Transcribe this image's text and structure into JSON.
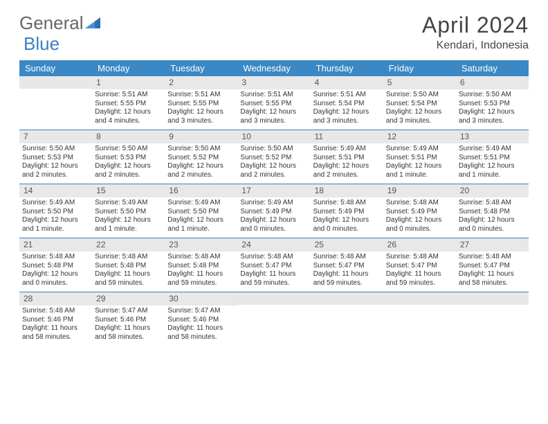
{
  "logo": {
    "text1": "General",
    "text2": "Blue"
  },
  "title": "April 2024",
  "location": "Kendari, Indonesia",
  "colors": {
    "header_bg": "#3b88c4",
    "header_text": "#ffffff",
    "daynum_bg": "#e8e8e8",
    "border": "#3b7fc4",
    "logo_blue": "#3b7fc4"
  },
  "dow": [
    "Sunday",
    "Monday",
    "Tuesday",
    "Wednesday",
    "Thursday",
    "Friday",
    "Saturday"
  ],
  "weeks": [
    [
      {
        "day": "",
        "sunrise": "",
        "sunset": "",
        "daylight": ""
      },
      {
        "day": "1",
        "sunrise": "Sunrise: 5:51 AM",
        "sunset": "Sunset: 5:55 PM",
        "daylight": "Daylight: 12 hours and 4 minutes."
      },
      {
        "day": "2",
        "sunrise": "Sunrise: 5:51 AM",
        "sunset": "Sunset: 5:55 PM",
        "daylight": "Daylight: 12 hours and 3 minutes."
      },
      {
        "day": "3",
        "sunrise": "Sunrise: 5:51 AM",
        "sunset": "Sunset: 5:55 PM",
        "daylight": "Daylight: 12 hours and 3 minutes."
      },
      {
        "day": "4",
        "sunrise": "Sunrise: 5:51 AM",
        "sunset": "Sunset: 5:54 PM",
        "daylight": "Daylight: 12 hours and 3 minutes."
      },
      {
        "day": "5",
        "sunrise": "Sunrise: 5:50 AM",
        "sunset": "Sunset: 5:54 PM",
        "daylight": "Daylight: 12 hours and 3 minutes."
      },
      {
        "day": "6",
        "sunrise": "Sunrise: 5:50 AM",
        "sunset": "Sunset: 5:53 PM",
        "daylight": "Daylight: 12 hours and 3 minutes."
      }
    ],
    [
      {
        "day": "7",
        "sunrise": "Sunrise: 5:50 AM",
        "sunset": "Sunset: 5:53 PM",
        "daylight": "Daylight: 12 hours and 2 minutes."
      },
      {
        "day": "8",
        "sunrise": "Sunrise: 5:50 AM",
        "sunset": "Sunset: 5:53 PM",
        "daylight": "Daylight: 12 hours and 2 minutes."
      },
      {
        "day": "9",
        "sunrise": "Sunrise: 5:50 AM",
        "sunset": "Sunset: 5:52 PM",
        "daylight": "Daylight: 12 hours and 2 minutes."
      },
      {
        "day": "10",
        "sunrise": "Sunrise: 5:50 AM",
        "sunset": "Sunset: 5:52 PM",
        "daylight": "Daylight: 12 hours and 2 minutes."
      },
      {
        "day": "11",
        "sunrise": "Sunrise: 5:49 AM",
        "sunset": "Sunset: 5:51 PM",
        "daylight": "Daylight: 12 hours and 2 minutes."
      },
      {
        "day": "12",
        "sunrise": "Sunrise: 5:49 AM",
        "sunset": "Sunset: 5:51 PM",
        "daylight": "Daylight: 12 hours and 1 minute."
      },
      {
        "day": "13",
        "sunrise": "Sunrise: 5:49 AM",
        "sunset": "Sunset: 5:51 PM",
        "daylight": "Daylight: 12 hours and 1 minute."
      }
    ],
    [
      {
        "day": "14",
        "sunrise": "Sunrise: 5:49 AM",
        "sunset": "Sunset: 5:50 PM",
        "daylight": "Daylight: 12 hours and 1 minute."
      },
      {
        "day": "15",
        "sunrise": "Sunrise: 5:49 AM",
        "sunset": "Sunset: 5:50 PM",
        "daylight": "Daylight: 12 hours and 1 minute."
      },
      {
        "day": "16",
        "sunrise": "Sunrise: 5:49 AM",
        "sunset": "Sunset: 5:50 PM",
        "daylight": "Daylight: 12 hours and 1 minute."
      },
      {
        "day": "17",
        "sunrise": "Sunrise: 5:49 AM",
        "sunset": "Sunset: 5:49 PM",
        "daylight": "Daylight: 12 hours and 0 minutes."
      },
      {
        "day": "18",
        "sunrise": "Sunrise: 5:48 AM",
        "sunset": "Sunset: 5:49 PM",
        "daylight": "Daylight: 12 hours and 0 minutes."
      },
      {
        "day": "19",
        "sunrise": "Sunrise: 5:48 AM",
        "sunset": "Sunset: 5:49 PM",
        "daylight": "Daylight: 12 hours and 0 minutes."
      },
      {
        "day": "20",
        "sunrise": "Sunrise: 5:48 AM",
        "sunset": "Sunset: 5:48 PM",
        "daylight": "Daylight: 12 hours and 0 minutes."
      }
    ],
    [
      {
        "day": "21",
        "sunrise": "Sunrise: 5:48 AM",
        "sunset": "Sunset: 5:48 PM",
        "daylight": "Daylight: 12 hours and 0 minutes."
      },
      {
        "day": "22",
        "sunrise": "Sunrise: 5:48 AM",
        "sunset": "Sunset: 5:48 PM",
        "daylight": "Daylight: 11 hours and 59 minutes."
      },
      {
        "day": "23",
        "sunrise": "Sunrise: 5:48 AM",
        "sunset": "Sunset: 5:48 PM",
        "daylight": "Daylight: 11 hours and 59 minutes."
      },
      {
        "day": "24",
        "sunrise": "Sunrise: 5:48 AM",
        "sunset": "Sunset: 5:47 PM",
        "daylight": "Daylight: 11 hours and 59 minutes."
      },
      {
        "day": "25",
        "sunrise": "Sunrise: 5:48 AM",
        "sunset": "Sunset: 5:47 PM",
        "daylight": "Daylight: 11 hours and 59 minutes."
      },
      {
        "day": "26",
        "sunrise": "Sunrise: 5:48 AM",
        "sunset": "Sunset: 5:47 PM",
        "daylight": "Daylight: 11 hours and 59 minutes."
      },
      {
        "day": "27",
        "sunrise": "Sunrise: 5:48 AM",
        "sunset": "Sunset: 5:47 PM",
        "daylight": "Daylight: 11 hours and 58 minutes."
      }
    ],
    [
      {
        "day": "28",
        "sunrise": "Sunrise: 5:48 AM",
        "sunset": "Sunset: 5:46 PM",
        "daylight": "Daylight: 11 hours and 58 minutes."
      },
      {
        "day": "29",
        "sunrise": "Sunrise: 5:47 AM",
        "sunset": "Sunset: 5:46 PM",
        "daylight": "Daylight: 11 hours and 58 minutes."
      },
      {
        "day": "30",
        "sunrise": "Sunrise: 5:47 AM",
        "sunset": "Sunset: 5:46 PM",
        "daylight": "Daylight: 11 hours and 58 minutes."
      },
      {
        "day": "",
        "sunrise": "",
        "sunset": "",
        "daylight": ""
      },
      {
        "day": "",
        "sunrise": "",
        "sunset": "",
        "daylight": ""
      },
      {
        "day": "",
        "sunrise": "",
        "sunset": "",
        "daylight": ""
      },
      {
        "day": "",
        "sunrise": "",
        "sunset": "",
        "daylight": ""
      }
    ]
  ]
}
